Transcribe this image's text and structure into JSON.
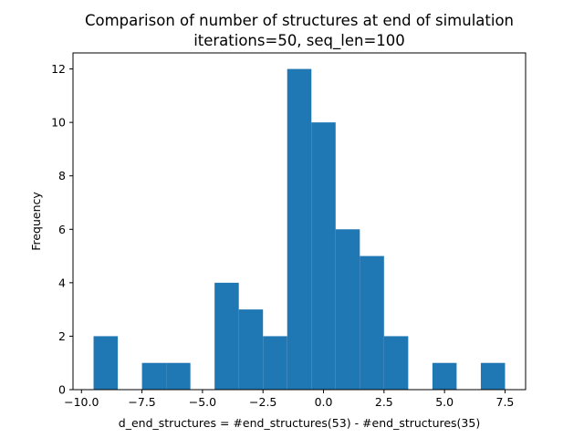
{
  "chart_data": {
    "type": "bar",
    "title": [
      "Comparison of number of structures at end of simulation",
      "iterations=50, seq_len=100"
    ],
    "xlabel": "d_end_structures = #end_structures(53) - #end_structures(35)",
    "ylabel": "Frequency",
    "xlim": [
      -10.35,
      8.35
    ],
    "ylim": [
      0,
      12.6
    ],
    "xticks": [
      -10.0,
      -7.5,
      -5.0,
      -2.5,
      0.0,
      2.5,
      5.0,
      7.5
    ],
    "xtick_labels": [
      "−10.0",
      "−7.5",
      "−5.0",
      "−2.5",
      "0.0",
      "2.5",
      "5.0",
      "7.5"
    ],
    "yticks": [
      0,
      2,
      4,
      6,
      8,
      10,
      12
    ],
    "ytick_labels": [
      "0",
      "2",
      "4",
      "6",
      "8",
      "10",
      "12"
    ],
    "bin_edges": [
      -9.5,
      -8.5,
      -7.5,
      -6.5,
      -5.5,
      -4.5,
      -3.5,
      -2.5,
      -1.5,
      -0.5,
      0.5,
      1.5,
      2.5,
      3.5,
      4.5,
      5.5,
      6.5,
      7.5
    ],
    "counts": [
      2,
      0,
      1,
      1,
      0,
      4,
      3,
      2,
      12,
      10,
      6,
      5,
      2,
      0,
      1,
      0,
      1
    ],
    "bar_color": "#1f77b4",
    "grid": false,
    "legend": "none"
  }
}
